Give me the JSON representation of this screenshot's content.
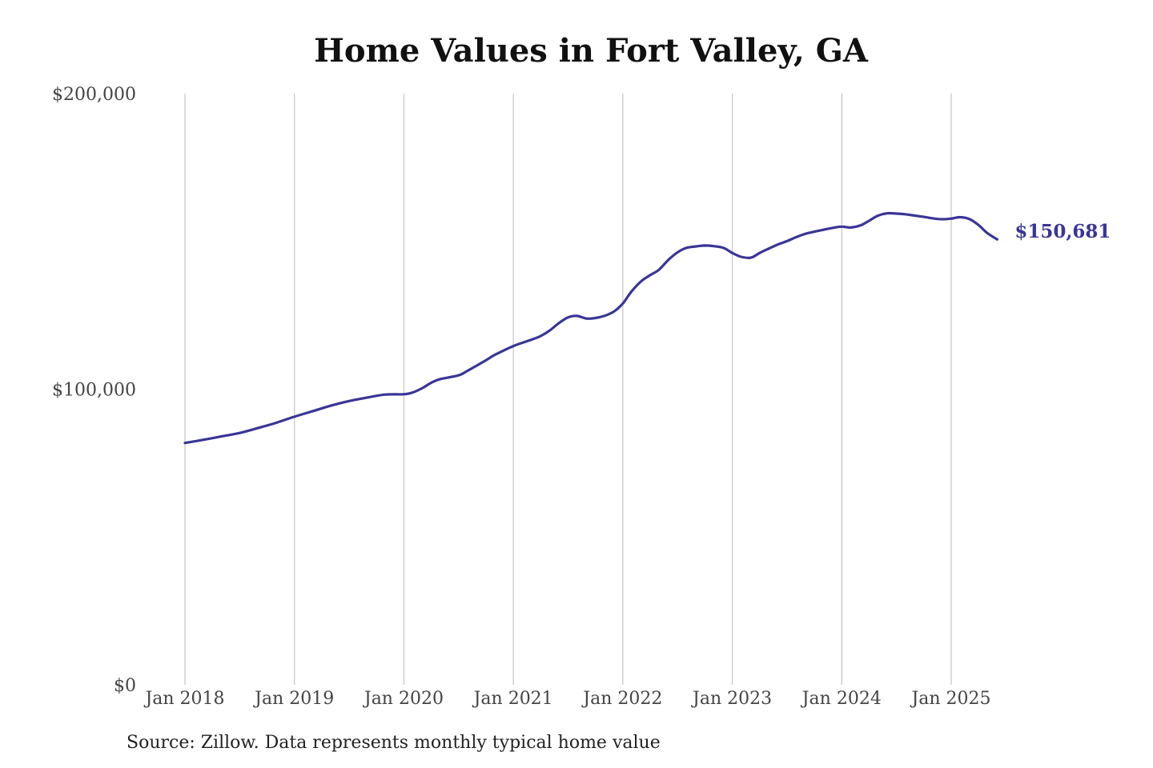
{
  "chart_data": {
    "type": "line",
    "title": "Home Values in Fort Valley, GA",
    "source": "Source: Zillow. Data represents monthly typical home value",
    "xlabel": "",
    "ylabel": "",
    "ylim": [
      0,
      200000
    ],
    "y_ticks": [
      {
        "value": 0,
        "label": "$0"
      },
      {
        "value": 100000,
        "label": "$100,000"
      },
      {
        "value": 200000,
        "label": "$200,000"
      }
    ],
    "x_ticks": [
      {
        "value": 2018,
        "label": "Jan 2018"
      },
      {
        "value": 2019,
        "label": "Jan 2019"
      },
      {
        "value": 2020,
        "label": "Jan 2020"
      },
      {
        "value": 2021,
        "label": "Jan 2021"
      },
      {
        "value": 2022,
        "label": "Jan 2022"
      },
      {
        "value": 2023,
        "label": "Jan 2023"
      },
      {
        "value": 2024,
        "label": "Jan 2024"
      },
      {
        "value": 2025,
        "label": "Jan 2025"
      }
    ],
    "xlim": [
      2018,
      2025.42
    ],
    "grid": {
      "vertical": true,
      "horizontal": false
    },
    "line_color": "#3a3596",
    "end_label": "$150,681",
    "series": [
      {
        "points": [
          [
            2018.0,
            81800
          ],
          [
            2018.17,
            82900
          ],
          [
            2018.33,
            84000
          ],
          [
            2018.5,
            85200
          ],
          [
            2018.67,
            86900
          ],
          [
            2018.83,
            88600
          ],
          [
            2019.0,
            90700
          ],
          [
            2019.17,
            92600
          ],
          [
            2019.33,
            94400
          ],
          [
            2019.5,
            96000
          ],
          [
            2019.67,
            97200
          ],
          [
            2019.83,
            98200
          ],
          [
            2020.0,
            98300
          ],
          [
            2020.08,
            98900
          ],
          [
            2020.17,
            100400
          ],
          [
            2020.25,
            102200
          ],
          [
            2020.33,
            103400
          ],
          [
            2020.5,
            104700
          ],
          [
            2020.58,
            106200
          ],
          [
            2020.75,
            109800
          ],
          [
            2020.83,
            111600
          ],
          [
            2021.0,
            114600
          ],
          [
            2021.17,
            116800
          ],
          [
            2021.25,
            118000
          ],
          [
            2021.33,
            119800
          ],
          [
            2021.42,
            122500
          ],
          [
            2021.5,
            124300
          ],
          [
            2021.58,
            124800
          ],
          [
            2021.67,
            123900
          ],
          [
            2021.75,
            124100
          ],
          [
            2021.83,
            124800
          ],
          [
            2021.92,
            126300
          ],
          [
            2022.0,
            129000
          ],
          [
            2022.08,
            133100
          ],
          [
            2022.17,
            136600
          ],
          [
            2022.25,
            138600
          ],
          [
            2022.33,
            140400
          ],
          [
            2022.42,
            143900
          ],
          [
            2022.5,
            146300
          ],
          [
            2022.58,
            147800
          ],
          [
            2022.67,
            148300
          ],
          [
            2022.75,
            148600
          ],
          [
            2022.83,
            148400
          ],
          [
            2022.92,
            147800
          ],
          [
            2023.0,
            146100
          ],
          [
            2023.08,
            144800
          ],
          [
            2023.17,
            144500
          ],
          [
            2023.25,
            146100
          ],
          [
            2023.33,
            147500
          ],
          [
            2023.42,
            149000
          ],
          [
            2023.5,
            150100
          ],
          [
            2023.58,
            151400
          ],
          [
            2023.67,
            152600
          ],
          [
            2023.75,
            153300
          ],
          [
            2023.83,
            153900
          ],
          [
            2023.92,
            154600
          ],
          [
            2024.0,
            155000
          ],
          [
            2024.08,
            154700
          ],
          [
            2024.17,
            155400
          ],
          [
            2024.25,
            157000
          ],
          [
            2024.33,
            158700
          ],
          [
            2024.42,
            159500
          ],
          [
            2024.5,
            159400
          ],
          [
            2024.58,
            159200
          ],
          [
            2024.67,
            158700
          ],
          [
            2024.75,
            158300
          ],
          [
            2024.83,
            157800
          ],
          [
            2024.92,
            157500
          ],
          [
            2025.0,
            157700
          ],
          [
            2025.08,
            158200
          ],
          [
            2025.17,
            157500
          ],
          [
            2025.25,
            155500
          ],
          [
            2025.33,
            152800
          ],
          [
            2025.42,
            150681
          ]
        ]
      }
    ]
  }
}
